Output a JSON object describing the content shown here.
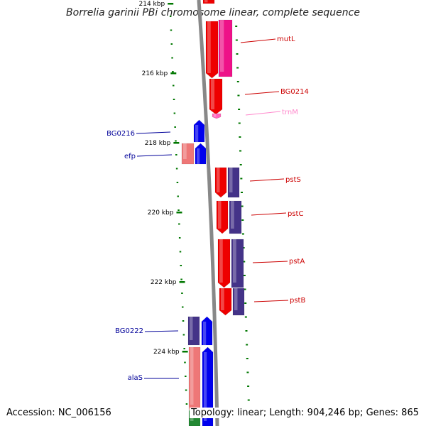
{
  "title": "Borrelia garinii PBi chromosome linear, complete sequence",
  "footer": {
    "accession": "Accession: NC_006156",
    "topology": "Topology: linear; Length: 904,246 bp; Genes: 865"
  },
  "ruler": [
    {
      "label": "214 kbp",
      "kbp": 214
    },
    {
      "label": "216 kbp",
      "kbp": 216
    },
    {
      "label": "218 kbp",
      "kbp": 218
    },
    {
      "label": "220 kbp",
      "kbp": 220
    },
    {
      "label": "222 kbp",
      "kbp": 222
    },
    {
      "label": "224 kbp",
      "kbp": 224
    }
  ],
  "colors": {
    "cds": "#ee0000",
    "gene": "#0000ee",
    "trna": "#ff66bb",
    "trna_gene": "#ee1188",
    "gene_other": "#443388",
    "cds_light": "#ee7777",
    "rrna": "#228833",
    "tick": "#007700",
    "label_right": "#cc0000",
    "label_left": "#000099",
    "label_trna": "#ff88cc",
    "backbone": "#888888"
  },
  "right_labels": [
    {
      "name": "mutL",
      "color": "label_right"
    },
    {
      "name": "BG0214",
      "color": "label_right"
    },
    {
      "name": "trnM",
      "color": "label_trna"
    },
    {
      "name": "pstS",
      "color": "label_right"
    },
    {
      "name": "pstC",
      "color": "label_right"
    },
    {
      "name": "pstA",
      "color": "label_right"
    },
    {
      "name": "pstB",
      "color": "label_right"
    }
  ],
  "left_labels": [
    {
      "name": "BG0216",
      "color": "label_left"
    },
    {
      "name": "efp",
      "color": "label_left"
    },
    {
      "name": "BG0222",
      "color": "label_left"
    },
    {
      "name": "alaS",
      "color": "label_left"
    }
  ]
}
